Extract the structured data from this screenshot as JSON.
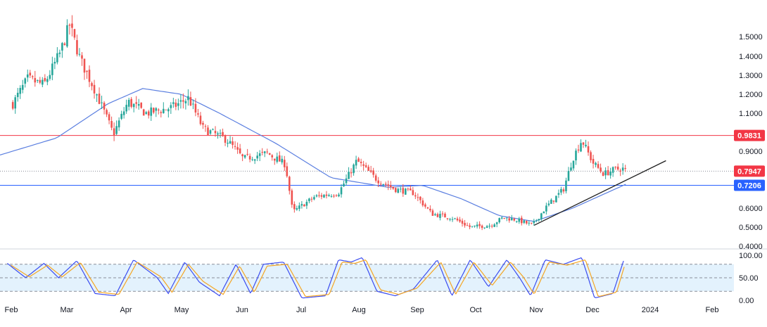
{
  "colors": {
    "up": "#26a69a",
    "down": "#ef5350",
    "ma": "#5b7fe0",
    "resistance": "#f23645",
    "support": "#2962ff",
    "current": "#f23645",
    "trendline": "#1f1f1f",
    "stoch_k": "#3b4cf0",
    "stoch_d": "#f5a623",
    "stoch_band": "#e3f2fd",
    "axis_text": "#131722",
    "grid": "#e6e8ee"
  },
  "chart_data": [
    {
      "type": "line",
      "subtype": "candlestick",
      "title": "",
      "xlabel": "",
      "ylabel": "",
      "x_axis": {
        "months": [
          "Feb",
          "Mar",
          "Apr",
          "May",
          "Jun",
          "Jul",
          "Aug",
          "Sep",
          "Oct",
          "Nov",
          "Dec",
          "2024",
          "Feb"
        ]
      },
      "y_axis": {
        "ylim": [
          0.4,
          1.58
        ],
        "ticks": [
          "1.5000",
          "1.4000",
          "1.3000",
          "1.2000",
          "1.1000",
          "0.9000",
          "0.6000",
          "0.5000",
          "0.4000"
        ]
      },
      "price_path": [
        {
          "date": "2023-01-08",
          "close": 1.15
        },
        {
          "date": "2023-01-16",
          "close": 1.28
        },
        {
          "date": "2023-01-25",
          "close": 1.25
        },
        {
          "date": "2023-02-03",
          "close": 1.42
        },
        {
          "date": "2023-02-08",
          "close": 1.56
        },
        {
          "date": "2023-02-14",
          "close": 1.38
        },
        {
          "date": "2023-02-22",
          "close": 1.22
        },
        {
          "date": "2023-03-04",
          "close": 0.99
        },
        {
          "date": "2023-03-12",
          "close": 1.16
        },
        {
          "date": "2023-03-22",
          "close": 1.1
        },
        {
          "date": "2023-04-05",
          "close": 1.13
        },
        {
          "date": "2023-04-14",
          "close": 1.18
        },
        {
          "date": "2023-04-22",
          "close": 1.02
        },
        {
          "date": "2023-05-05",
          "close": 0.96
        },
        {
          "date": "2023-05-14",
          "close": 0.86
        },
        {
          "date": "2023-05-27",
          "close": 0.89
        },
        {
          "date": "2023-06-06",
          "close": 0.83
        },
        {
          "date": "2023-06-10",
          "close": 0.58
        },
        {
          "date": "2023-06-22",
          "close": 0.66
        },
        {
          "date": "2023-07-05",
          "close": 0.68
        },
        {
          "date": "2023-07-15",
          "close": 0.85
        },
        {
          "date": "2023-07-26",
          "close": 0.75
        },
        {
          "date": "2023-08-05",
          "close": 0.7
        },
        {
          "date": "2023-08-15",
          "close": 0.68
        },
        {
          "date": "2023-08-25",
          "close": 0.57
        },
        {
          "date": "2023-09-05",
          "close": 0.55
        },
        {
          "date": "2023-09-15",
          "close": 0.5
        },
        {
          "date": "2023-09-26",
          "close": 0.51
        },
        {
          "date": "2023-10-03",
          "close": 0.55
        },
        {
          "date": "2023-10-10",
          "close": 0.54
        },
        {
          "date": "2023-10-19",
          "close": 0.51
        },
        {
          "date": "2023-10-26",
          "close": 0.6
        },
        {
          "date": "2023-11-05",
          "close": 0.7
        },
        {
          "date": "2023-11-10",
          "close": 0.86
        },
        {
          "date": "2023-11-15",
          "close": 0.96
        },
        {
          "date": "2023-11-21",
          "close": 0.84
        },
        {
          "date": "2023-11-27",
          "close": 0.78
        },
        {
          "date": "2023-12-02",
          "close": 0.8
        },
        {
          "date": "2023-12-07",
          "close": 0.81
        },
        {
          "date": "2023-12-10",
          "close": 0.7947
        }
      ],
      "moving_average_path": [
        {
          "date": "2023-01-01",
          "value": 0.88
        },
        {
          "date": "2023-02-01",
          "value": 0.97
        },
        {
          "date": "2023-03-01",
          "value": 1.15
        },
        {
          "date": "2023-03-20",
          "value": 1.23
        },
        {
          "date": "2023-04-10",
          "value": 1.2
        },
        {
          "date": "2023-05-01",
          "value": 1.1
        },
        {
          "date": "2023-06-01",
          "value": 0.94
        },
        {
          "date": "2023-07-01",
          "value": 0.76
        },
        {
          "date": "2023-08-01",
          "value": 0.71
        },
        {
          "date": "2023-08-20",
          "value": 0.72
        },
        {
          "date": "2023-09-10",
          "value": 0.65
        },
        {
          "date": "2023-10-01",
          "value": 0.56
        },
        {
          "date": "2023-10-20",
          "value": 0.53
        },
        {
          "date": "2023-11-10",
          "value": 0.6
        },
        {
          "date": "2023-12-10",
          "value": 0.73
        }
      ],
      "trendline": [
        {
          "date": "2023-10-20",
          "value": 0.51
        },
        {
          "date": "2023-12-31",
          "value": 0.85
        }
      ],
      "levels": {
        "resistance": {
          "value": 0.9831,
          "label": "0.9831"
        },
        "current": {
          "value": 0.7947,
          "label": "0.7947"
        },
        "support": {
          "value": 0.7206,
          "label": "0.7206"
        }
      }
    },
    {
      "type": "line",
      "subtype": "stochastic oscillator",
      "title": "",
      "ylim": [
        0,
        100
      ],
      "y_ticks": [
        "100.00",
        "50.00",
        "0.00"
      ],
      "levels": [
        80,
        50,
        20
      ],
      "series": [
        {
          "values": [
            {
              "date": "2023-01-05",
              "value": 82
            },
            {
              "date": "2023-01-15",
              "value": 50
            },
            {
              "date": "2023-01-25",
              "value": 82
            },
            {
              "date": "2023-02-02",
              "value": 50
            },
            {
              "date": "2023-02-12",
              "value": 88
            },
            {
              "date": "2023-02-22",
              "value": 15
            },
            {
              "date": "2023-03-05",
              "value": 10
            },
            {
              "date": "2023-03-15",
              "value": 90
            },
            {
              "date": "2023-03-28",
              "value": 50
            },
            {
              "date": "2023-04-03",
              "value": 15
            },
            {
              "date": "2023-04-12",
              "value": 85
            },
            {
              "date": "2023-04-20",
              "value": 40
            },
            {
              "date": "2023-05-01",
              "value": 10
            },
            {
              "date": "2023-05-10",
              "value": 80
            },
            {
              "date": "2023-05-18",
              "value": 15
            },
            {
              "date": "2023-05-25",
              "value": 80
            },
            {
              "date": "2023-06-05",
              "value": 85
            },
            {
              "date": "2023-06-15",
              "value": 5
            },
            {
              "date": "2023-06-28",
              "value": 10
            },
            {
              "date": "2023-07-05",
              "value": 90
            },
            {
              "date": "2023-07-12",
              "value": 85
            },
            {
              "date": "2023-07-18",
              "value": 95
            },
            {
              "date": "2023-07-26",
              "value": 20
            },
            {
              "date": "2023-08-05",
              "value": 10
            },
            {
              "date": "2023-08-15",
              "value": 25
            },
            {
              "date": "2023-08-28",
              "value": 90
            },
            {
              "date": "2023-09-05",
              "value": 10
            },
            {
              "date": "2023-09-15",
              "value": 90
            },
            {
              "date": "2023-09-25",
              "value": 30
            },
            {
              "date": "2023-10-05",
              "value": 90
            },
            {
              "date": "2023-10-12",
              "value": 50
            },
            {
              "date": "2023-10-18",
              "value": 10
            },
            {
              "date": "2023-10-26",
              "value": 90
            },
            {
              "date": "2023-11-05",
              "value": 80
            },
            {
              "date": "2023-11-15",
              "value": 95
            },
            {
              "date": "2023-11-22",
              "value": 5
            },
            {
              "date": "2023-12-02",
              "value": 15
            },
            {
              "date": "2023-12-08",
              "value": 90
            }
          ]
        },
        {
          "values": [
            {
              "date": "2023-01-07",
              "value": 78
            },
            {
              "date": "2023-01-17",
              "value": 52
            },
            {
              "date": "2023-01-27",
              "value": 78
            },
            {
              "date": "2023-02-04",
              "value": 52
            },
            {
              "date": "2023-02-14",
              "value": 84
            },
            {
              "date": "2023-02-24",
              "value": 18
            },
            {
              "date": "2023-03-07",
              "value": 13
            },
            {
              "date": "2023-03-17",
              "value": 85
            },
            {
              "date": "2023-03-30",
              "value": 52
            },
            {
              "date": "2023-04-05",
              "value": 18
            },
            {
              "date": "2023-04-14",
              "value": 80
            },
            {
              "date": "2023-04-22",
              "value": 42
            },
            {
              "date": "2023-05-03",
              "value": 13
            },
            {
              "date": "2023-05-12",
              "value": 76
            },
            {
              "date": "2023-05-20",
              "value": 18
            },
            {
              "date": "2023-05-27",
              "value": 76
            },
            {
              "date": "2023-06-07",
              "value": 80
            },
            {
              "date": "2023-06-17",
              "value": 8
            },
            {
              "date": "2023-06-30",
              "value": 13
            },
            {
              "date": "2023-07-07",
              "value": 85
            },
            {
              "date": "2023-07-14",
              "value": 82
            },
            {
              "date": "2023-07-20",
              "value": 90
            },
            {
              "date": "2023-07-28",
              "value": 23
            },
            {
              "date": "2023-08-07",
              "value": 13
            },
            {
              "date": "2023-08-17",
              "value": 27
            },
            {
              "date": "2023-08-30",
              "value": 85
            },
            {
              "date": "2023-09-07",
              "value": 13
            },
            {
              "date": "2023-09-17",
              "value": 85
            },
            {
              "date": "2023-09-27",
              "value": 33
            },
            {
              "date": "2023-10-07",
              "value": 85
            },
            {
              "date": "2023-10-14",
              "value": 52
            },
            {
              "date": "2023-10-20",
              "value": 13
            },
            {
              "date": "2023-10-28",
              "value": 85
            },
            {
              "date": "2023-11-07",
              "value": 78
            },
            {
              "date": "2023-11-17",
              "value": 90
            },
            {
              "date": "2023-11-24",
              "value": 8
            },
            {
              "date": "2023-12-04",
              "value": 18
            },
            {
              "date": "2023-12-09",
              "value": 85
            }
          ]
        }
      ]
    }
  ]
}
